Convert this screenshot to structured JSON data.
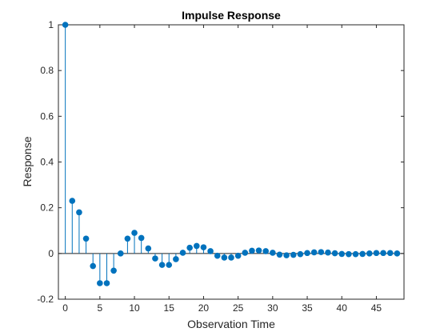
{
  "chart_data": {
    "type": "stem",
    "title": "Impulse Response",
    "xlabel": "Observation Time",
    "ylabel": "Response",
    "xlim": [
      -1,
      49
    ],
    "ylim": [
      -0.2,
      1
    ],
    "xticks": [
      0,
      5,
      10,
      15,
      20,
      25,
      30,
      35,
      40,
      45
    ],
    "xtick_labels": [
      "0",
      "5",
      "10",
      "15",
      "20",
      "25",
      "30",
      "35",
      "40",
      "45"
    ],
    "yticks": [
      -0.2,
      0,
      0.2,
      0.4,
      0.6,
      0.8,
      1
    ],
    "ytick_labels": [
      "-0.2",
      "0",
      "0.2",
      "0.4",
      "0.6",
      "0.8",
      "1"
    ],
    "grid": false,
    "color": "#0072BD",
    "x": [
      0,
      1,
      2,
      3,
      4,
      5,
      6,
      7,
      8,
      9,
      10,
      11,
      12,
      13,
      14,
      15,
      16,
      17,
      18,
      19,
      20,
      21,
      22,
      23,
      24,
      25,
      26,
      27,
      28,
      29,
      30,
      31,
      32,
      33,
      34,
      35,
      36,
      37,
      38,
      39,
      40,
      41,
      42,
      43,
      44,
      45,
      46,
      47,
      48
    ],
    "values": [
      1.0,
      0.23,
      0.18,
      0.065,
      -0.055,
      -0.13,
      -0.13,
      -0.075,
      0.0,
      0.065,
      0.09,
      0.068,
      0.022,
      -0.022,
      -0.05,
      -0.05,
      -0.025,
      0.003,
      0.025,
      0.033,
      0.027,
      0.01,
      -0.01,
      -0.018,
      -0.018,
      -0.01,
      0.003,
      0.012,
      0.013,
      0.01,
      0.003,
      -0.005,
      -0.008,
      -0.006,
      -0.003,
      0.002,
      0.005,
      0.006,
      0.004,
      0.001,
      -0.002,
      -0.003,
      -0.003,
      -0.002,
      0.0,
      0.002,
      0.002,
      0.002,
      0.0
    ]
  }
}
